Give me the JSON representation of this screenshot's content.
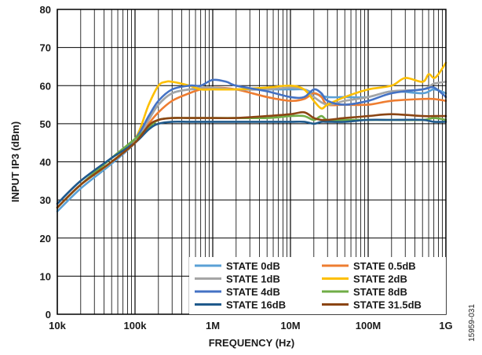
{
  "chart_data": {
    "type": "line",
    "xlabel": "FREQUENCY (Hz)",
    "ylabel": "INPUT IP3 (dBm)",
    "xscale": "log",
    "xlim": [
      10000,
      1000000000
    ],
    "ylim": [
      0,
      80
    ],
    "grid": true,
    "legend_placement": "bottom-right",
    "x_ticks": [
      {
        "value": 10000,
        "label": "10k"
      },
      {
        "value": 100000,
        "label": "100k"
      },
      {
        "value": 1000000,
        "label": "1M"
      },
      {
        "value": 10000000,
        "label": "10M"
      },
      {
        "value": 100000000,
        "label": "100M"
      },
      {
        "value": 1000000000,
        "label": "1G"
      }
    ],
    "y_ticks": [
      0,
      10,
      20,
      30,
      40,
      50,
      60,
      70,
      80
    ],
    "series": [
      {
        "name": "STATE 0dB",
        "color": "#5aa0d6",
        "x": [
          10000,
          20000,
          50000,
          100000,
          150000,
          200000,
          300000,
          500000,
          700000,
          1000000,
          2000000,
          5000000,
          10000000,
          15000000,
          20000000,
          30000000,
          50000000,
          100000000,
          200000000,
          500000000,
          700000000,
          1000000000
        ],
        "y": [
          27,
          33,
          39.5,
          45,
          51,
          55,
          58,
          59,
          59,
          59,
          59,
          59,
          59,
          59,
          58,
          57,
          57,
          57,
          58.5,
          58,
          59,
          58
        ]
      },
      {
        "name": "STATE 0.5dB",
        "color": "#ee7d31",
        "x": [
          10000,
          20000,
          50000,
          100000,
          150000,
          200000,
          300000,
          500000,
          700000,
          1000000,
          2000000,
          5000000,
          10000000,
          15000000,
          20000000,
          25000000,
          30000000,
          50000000,
          100000000,
          200000000,
          500000000,
          700000000,
          1000000000
        ],
        "y": [
          28,
          34,
          40,
          45,
          50,
          53,
          56,
          58,
          59,
          59.5,
          59,
          57,
          56,
          56.5,
          58,
          57,
          55,
          55,
          55,
          56,
          56.5,
          56.5,
          56
        ]
      },
      {
        "name": "STATE 1dB",
        "color": "#a5a5a5",
        "x": [
          10000,
          20000,
          50000,
          100000,
          150000,
          200000,
          300000,
          500000,
          700000,
          1000000,
          2000000,
          5000000,
          10000000,
          15000000,
          20000000,
          30000000,
          50000000,
          100000000,
          200000000,
          500000000,
          700000000,
          1000000000
        ],
        "y": [
          28,
          34,
          40,
          45,
          51,
          55,
          58,
          59,
          59.5,
          59.5,
          59,
          59,
          59.5,
          59,
          57,
          55,
          56,
          57,
          58.5,
          59,
          60.5,
          61
        ]
      },
      {
        "name": "STATE 2dB",
        "color": "#fdbf00",
        "x": [
          10000,
          20000,
          50000,
          100000,
          150000,
          200000,
          250000,
          300000,
          500000,
          700000,
          1000000,
          2000000,
          5000000,
          10000000,
          15000000,
          20000000,
          25000000,
          30000000,
          50000000,
          100000000,
          200000000,
          300000000,
          500000000,
          600000000,
          700000000,
          800000000,
          1000000000
        ],
        "y": [
          28,
          34,
          40,
          46,
          55,
          60,
          61,
          61,
          60,
          59,
          59,
          59,
          59.5,
          60,
          59,
          56,
          54,
          55,
          57,
          59,
          60,
          62,
          61,
          63,
          62,
          63,
          66
        ]
      },
      {
        "name": "STATE 4dB",
        "color": "#4472c4",
        "x": [
          10000,
          20000,
          50000,
          100000,
          150000,
          200000,
          300000,
          500000,
          700000,
          1000000,
          1500000,
          2000000,
          5000000,
          10000000,
          15000000,
          20000000,
          25000000,
          30000000,
          50000000,
          100000000,
          200000000,
          500000000,
          700000000,
          1000000000
        ],
        "y": [
          29,
          35,
          41,
          46,
          52,
          56,
          59,
          60,
          60,
          61.5,
          61,
          60,
          58.5,
          57,
          57,
          59,
          58,
          56,
          55,
          56,
          58,
          59,
          59.5,
          57
        ]
      },
      {
        "name": "STATE 8dB",
        "color": "#70ad47",
        "x": [
          10000,
          20000,
          50000,
          100000,
          150000,
          200000,
          300000,
          500000,
          1000000,
          2000000,
          5000000,
          10000000,
          15000000,
          20000000,
          25000000,
          30000000,
          50000000,
          100000000,
          200000000,
          500000000,
          700000000,
          1000000000
        ],
        "y": [
          28,
          34,
          41,
          46,
          49,
          51,
          51.5,
          51.5,
          51.5,
          51.5,
          51.5,
          52,
          52,
          51,
          52,
          51,
          51,
          51,
          51,
          51,
          51.5,
          51
        ]
      },
      {
        "name": "STATE 16dB",
        "color": "#1f5a8c",
        "x": [
          10000,
          20000,
          50000,
          100000,
          150000,
          200000,
          300000,
          500000,
          1000000,
          2000000,
          5000000,
          10000000,
          15000000,
          20000000,
          25000000,
          30000000,
          50000000,
          100000000,
          200000000,
          500000000,
          700000000,
          1000000000
        ],
        "y": [
          29,
          35,
          41,
          45,
          48.5,
          50,
          50.5,
          50.5,
          50.5,
          50.5,
          50.5,
          50.5,
          50.5,
          50,
          50.5,
          50.5,
          50.5,
          51,
          51,
          51,
          50.5,
          50.5
        ]
      },
      {
        "name": "STATE 31.5dB",
        "color": "#8b4513",
        "x": [
          10000,
          20000,
          50000,
          100000,
          150000,
          200000,
          300000,
          500000,
          1000000,
          2000000,
          5000000,
          10000000,
          15000000,
          20000000,
          25000000,
          30000000,
          50000000,
          100000000,
          200000000,
          500000000,
          700000000,
          1000000000
        ],
        "y": [
          28,
          34,
          40,
          45,
          49.5,
          51,
          51.5,
          51.5,
          51.5,
          51.5,
          52,
          52.5,
          53,
          51.5,
          51,
          51,
          51.5,
          52,
          52.5,
          52,
          52,
          52
        ]
      }
    ]
  },
  "figure_id": "15959-031"
}
